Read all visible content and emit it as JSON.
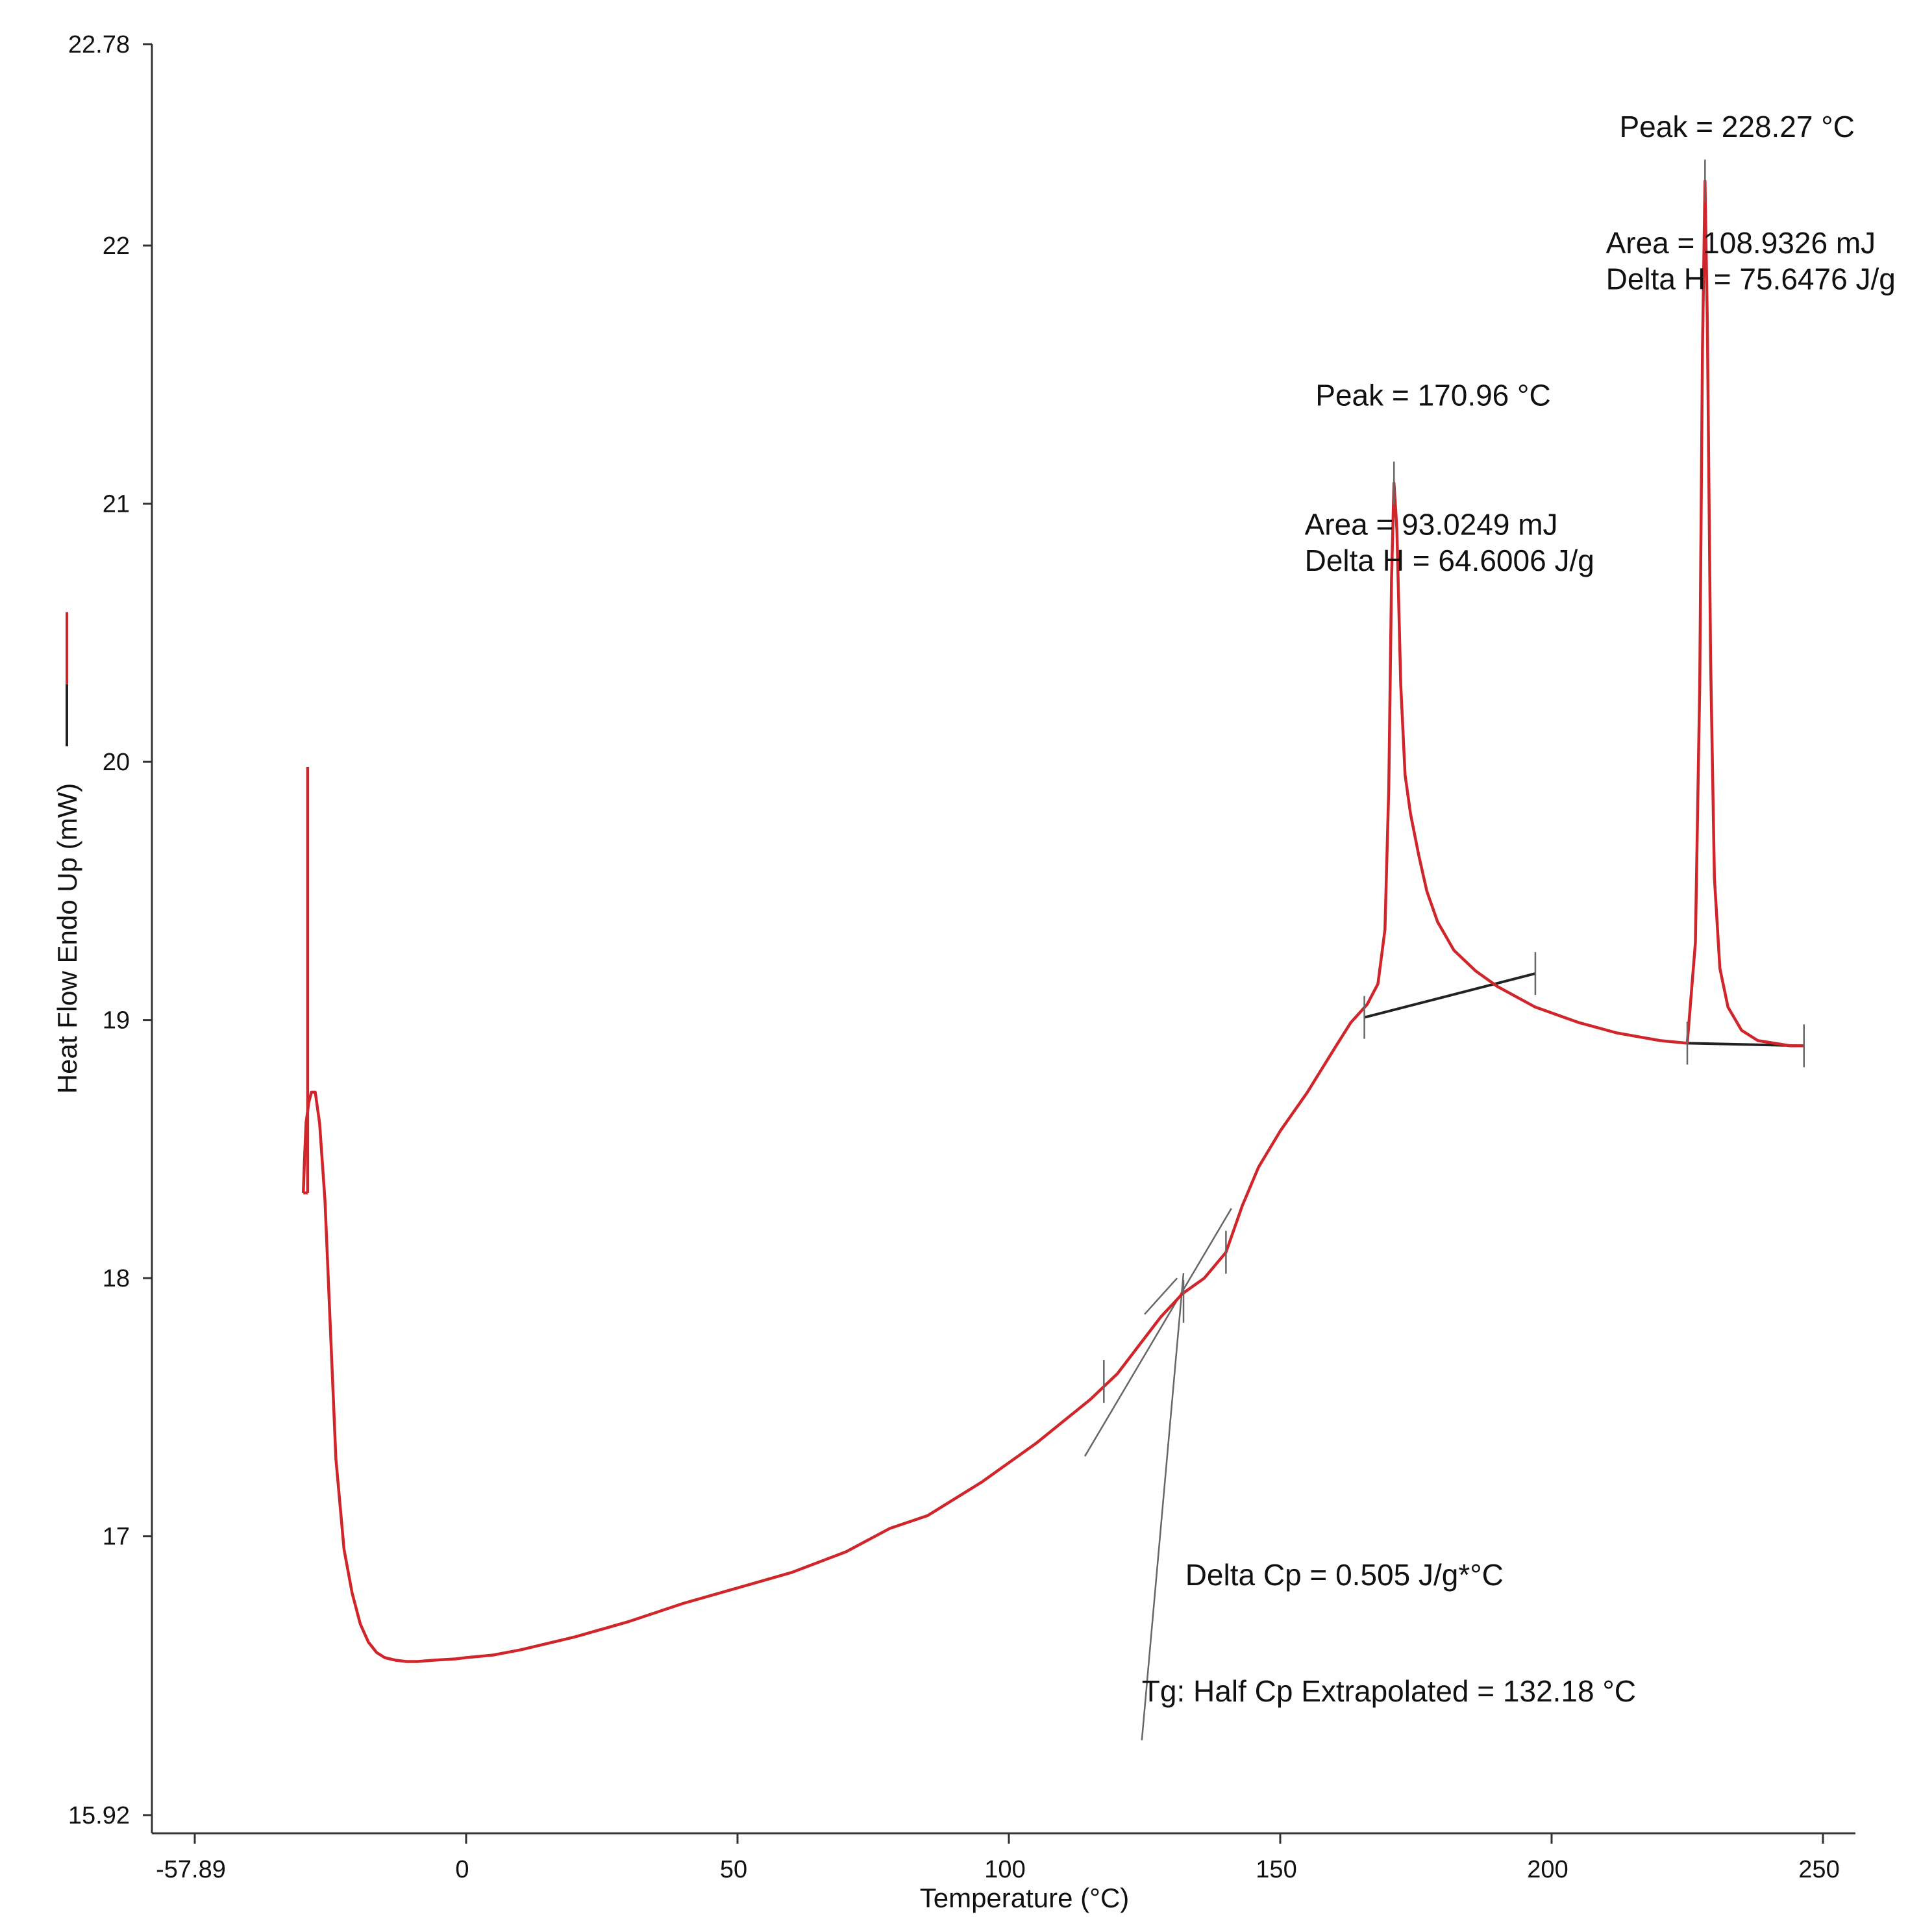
{
  "chart_data": {
    "type": "line",
    "title": "",
    "xlabel": "Temperature (°C)",
    "ylabel": "Heat Flow Endo Up (mW)",
    "xlim": [
      -57.89,
      250
    ],
    "ylim": [
      15.92,
      22.78
    ],
    "x_ticks": [
      "-57.89",
      "0",
      "50",
      "100",
      "150",
      "200",
      "250"
    ],
    "y_ticks": [
      "15.92",
      "17",
      "18",
      "19",
      "20",
      "21",
      "22",
      "22.78"
    ],
    "grid": false,
    "colors": {
      "curve": "#d0262b",
      "baseline": "#222222",
      "construction": "#666666",
      "axis": "#333333"
    },
    "series": [
      {
        "x": [
          -30.0,
          -29.8,
          -29.5,
          -29.0,
          -28.5,
          -27.8,
          -27.0,
          -26.0,
          -25.0,
          -24.0,
          -22.5,
          -21.0,
          -19.5,
          -18.0,
          -16.5,
          -15.0,
          -13.0,
          -11.0,
          -9.0,
          -6.0,
          -2.0,
          0.0,
          5.0,
          10.0,
          20.0,
          30.0,
          40.0,
          50.0,
          60.0,
          70.0,
          78.0,
          85.0,
          95.0,
          105.0,
          115.0,
          120.0,
          124.0,
          128.0,
          132.0,
          136.0,
          140.0,
          143.0,
          146.0,
          150.0,
          155.0,
          160.0,
          163.0,
          166.0,
          168.0,
          169.3,
          170.0,
          170.5,
          170.96,
          171.5,
          172.2,
          173.0,
          174.0,
          175.5,
          177.0,
          179.0,
          182.0,
          186.0,
          190.0,
          197.0,
          205.0,
          212.0,
          220.0,
          225.0,
          226.5,
          227.3,
          227.8,
          228.27,
          228.7,
          229.3,
          230.0,
          231.0,
          232.5,
          235.0,
          238.0,
          241.0,
          244.0,
          246.5
        ],
        "y": [
          18.33,
          18.45,
          18.6,
          18.68,
          18.72,
          18.72,
          18.6,
          18.3,
          17.8,
          17.3,
          16.95,
          16.78,
          16.66,
          16.59,
          16.55,
          16.53,
          16.52,
          16.515,
          16.515,
          16.52,
          16.525,
          16.53,
          16.54,
          16.56,
          16.61,
          16.67,
          16.74,
          16.8,
          16.86,
          16.94,
          17.03,
          17.08,
          17.21,
          17.36,
          17.53,
          17.63,
          17.74,
          17.85,
          17.94,
          18.0,
          18.1,
          18.28,
          18.43,
          18.57,
          18.72,
          18.89,
          18.99,
          19.06,
          19.14,
          19.35,
          19.9,
          20.7,
          21.08,
          20.9,
          20.3,
          19.95,
          19.8,
          19.64,
          19.5,
          19.38,
          19.27,
          19.19,
          19.13,
          19.05,
          18.99,
          18.95,
          18.92,
          18.91,
          19.3,
          20.3,
          21.6,
          22.25,
          21.7,
          20.4,
          19.55,
          19.2,
          19.05,
          18.96,
          18.92,
          18.91,
          18.9,
          18.9
        ]
      }
    ],
    "spike": {
      "x": -29.2,
      "y_bottom": 18.33,
      "y_top": 19.98
    },
    "baselines": [
      {
        "from": [
          165.5,
          19.01
        ],
        "to": [
          197.0,
          19.18
        ]
      },
      {
        "from": [
          225.0,
          18.91
        ],
        "to": [
          246.5,
          18.9
        ]
      }
    ],
    "tangent_lines": [
      {
        "from": [
          114.0,
          17.31
        ],
        "to": [
          141.0,
          18.27
        ]
      },
      {
        "from": [
          125.0,
          17.86
        ],
        "to": [
          131.0,
          18.0
        ]
      }
    ],
    "leader_line": {
      "from": [
        124.5,
        16.21
      ],
      "to": [
        132.18,
        18.02
      ]
    },
    "marker_ticks": [
      {
        "x": 117.5,
        "y": 17.6
      },
      {
        "x": 132.18,
        "y": 17.91
      },
      {
        "x": 140.0,
        "y": 18.1
      },
      {
        "x": 165.5,
        "y": 19.01
      },
      {
        "x": 170.96,
        "y": 21.08
      },
      {
        "x": 197.0,
        "y": 19.18
      },
      {
        "x": 225.0,
        "y": 18.91
      },
      {
        "x": 228.27,
        "y": 22.25
      },
      {
        "x": 246.5,
        "y": 18.9
      }
    ],
    "legend_samples": [
      {
        "color": "#d0262b",
        "y_from": 20.58,
        "y_to": 20.3
      },
      {
        "color": "#222222",
        "y_from": 20.3,
        "y_to": 20.06
      }
    ],
    "annotations": [
      {
        "id": "peak1",
        "text": "Peak = 170.96 °C",
        "x": 156.5,
        "y": 21.38
      },
      {
        "id": "area1",
        "text": "Area = 93.0249 mJ",
        "x": 154.5,
        "y": 20.88
      },
      {
        "id": "dh1",
        "text": "Delta H = 64.6006 J/g",
        "x": 154.5,
        "y": 20.74
      },
      {
        "id": "peak2",
        "text": "Peak = 228.27 °C",
        "x": 212.5,
        "y": 22.42
      },
      {
        "id": "area2",
        "text": "Area = 108.9326 mJ",
        "x": 210.0,
        "y": 21.97
      },
      {
        "id": "dh2",
        "text": "Delta H = 75.6476 J/g",
        "x": 210.0,
        "y": 21.83
      },
      {
        "id": "dcp",
        "text": "Delta Cp = 0.505 J/g*°C",
        "x": 132.5,
        "y": 16.81
      },
      {
        "id": "tg",
        "text": "Tg: Half Cp Extrapolated = 132.18 °C",
        "x": 124.5,
        "y": 16.36
      }
    ]
  }
}
